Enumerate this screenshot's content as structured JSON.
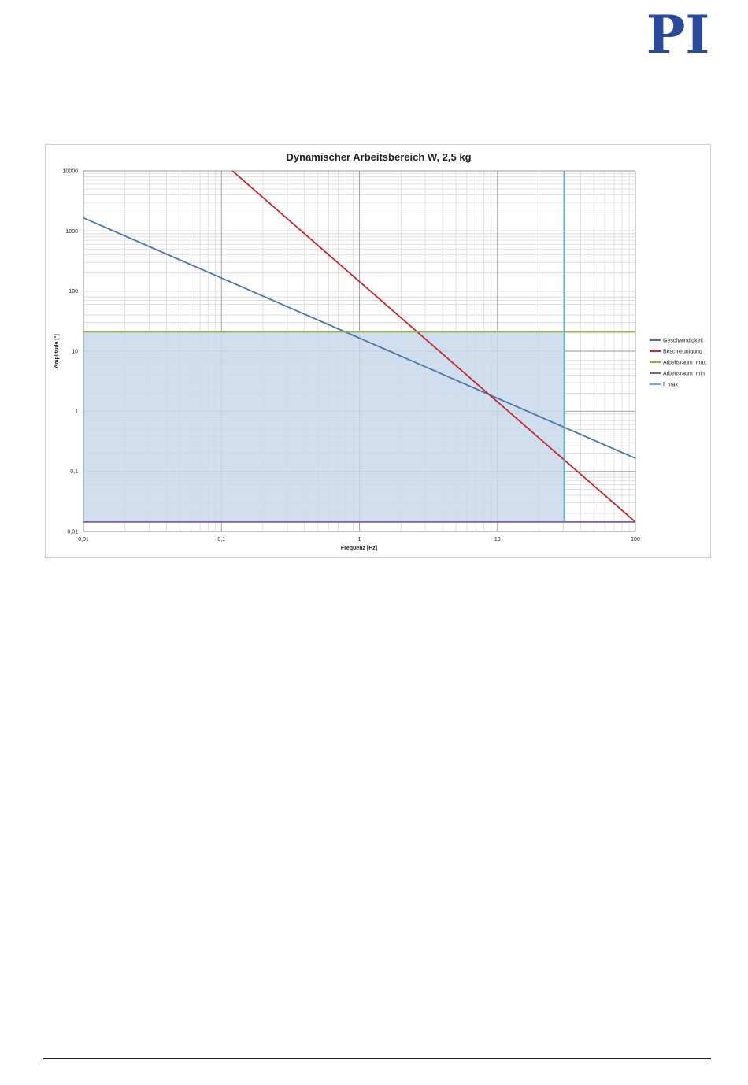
{
  "logo": {
    "text": "PI",
    "color": "#2b4a9a"
  },
  "chart_data": {
    "type": "line",
    "title": "Dynamischer Arbeitsbereich W, 2,5 kg",
    "xlabel": "Frequenz [Hz]",
    "ylabel": "Amplitude [°]",
    "xscale": "log",
    "yscale": "log",
    "xlim": [
      0.01,
      100
    ],
    "ylim": [
      0.01,
      10000
    ],
    "xticks": [
      "0,01",
      "0,1",
      "1",
      "10",
      "100"
    ],
    "yticks": [
      "0,01",
      "0,1",
      "1",
      "10",
      "100",
      "1000",
      "10000"
    ],
    "grid": true,
    "legend_position": "right",
    "series": [
      {
        "name": "Geschwindigkeit",
        "color": "#4a76a8",
        "x": [
          0.01,
          100
        ],
        "y": [
          1650,
          0.165
        ]
      },
      {
        "name": "Beschleunigung",
        "color": "#c0282c",
        "x": [
          0.12,
          100
        ],
        "y": [
          10000,
          0.0144
        ]
      },
      {
        "name": "Arbeitsraum_max",
        "color": "#8cb43c",
        "x": [
          0.01,
          100
        ],
        "y": [
          21,
          21
        ]
      },
      {
        "name": "Arbeitsraum_min",
        "color": "#7a5ca8",
        "x": [
          0.01,
          100
        ],
        "y": [
          0.0144,
          0.0144
        ]
      },
      {
        "name": "f_max",
        "color": "#5aaed0",
        "x": [
          30.5,
          30.5
        ],
        "y": [
          0.0144,
          10000
        ]
      }
    ],
    "shaded_region": {
      "color": "#c8d8ea",
      "x_from": 0.01,
      "x_to": 30.5,
      "y_from": 0.0144,
      "y_to": 21
    }
  }
}
